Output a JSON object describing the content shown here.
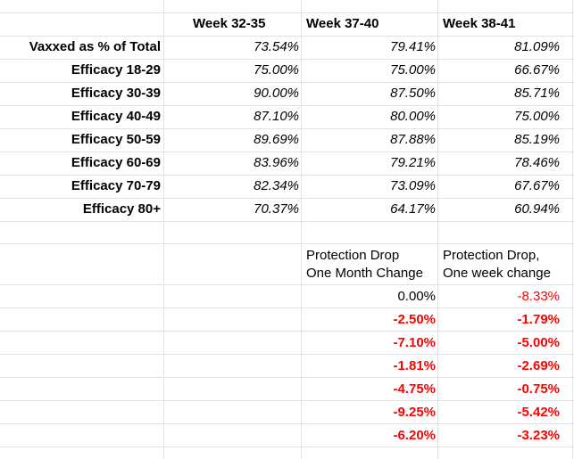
{
  "columns": [
    "Week 32-35",
    "Week 37-40",
    "Week 38-41"
  ],
  "rows": [
    {
      "label": "Vaxxed as % of Total",
      "values": [
        "73.54%",
        "79.41%",
        "81.09%"
      ]
    },
    {
      "label": "Efficacy 18-29",
      "values": [
        "75.00%",
        "75.00%",
        "66.67%"
      ]
    },
    {
      "label": "Efficacy 30-39",
      "values": [
        "90.00%",
        "87.50%",
        "85.71%"
      ]
    },
    {
      "label": "Efficacy 40-49",
      "values": [
        "87.10%",
        "80.00%",
        "75.00%"
      ]
    },
    {
      "label": "Efficacy 50-59",
      "values": [
        "89.69%",
        "87.88%",
        "85.19%"
      ]
    },
    {
      "label": "Efficacy 60-69",
      "values": [
        "83.96%",
        "79.21%",
        "78.46%"
      ]
    },
    {
      "label": "Efficacy 70-79",
      "values": [
        "82.34%",
        "73.09%",
        "67.67%"
      ]
    },
    {
      "label": "Efficacy 80+",
      "values": [
        "70.37%",
        "64.17%",
        "60.94%"
      ]
    }
  ],
  "protection": {
    "header_month_line1": "Protection Drop",
    "header_month_line2": "One Month Change",
    "header_week_line1": "Protection Drop,",
    "header_week_line2": "One week change",
    "month_change": [
      "0.00%",
      "-2.50%",
      "-7.10%",
      "-1.81%",
      "-4.75%",
      "-9.25%",
      "-6.20%"
    ],
    "week_change": [
      "-8.33%",
      "-1.79%",
      "-5.00%",
      "-2.69%",
      "-0.75%",
      "-5.42%",
      "-3.23%"
    ]
  },
  "colors": {
    "negative": "#ff0000",
    "grid": "#e2e2e2"
  }
}
